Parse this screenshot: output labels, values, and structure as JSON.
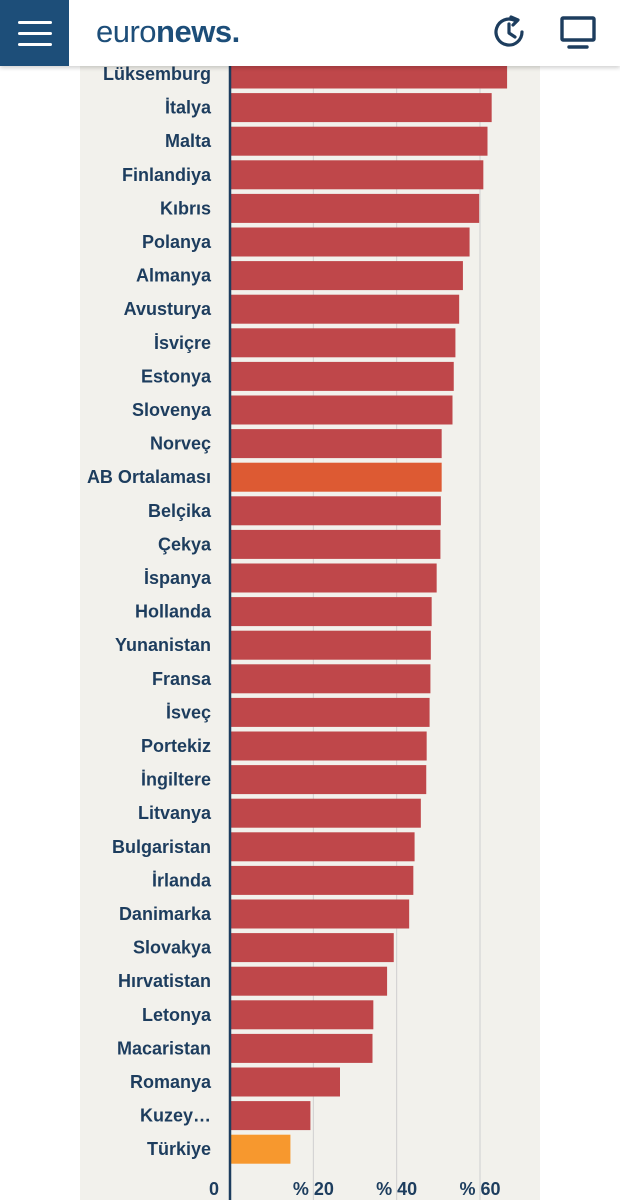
{
  "header": {
    "logo_light": "euro",
    "logo_bold": "news",
    "logo_dot": ".",
    "brand_color": "#1d4e79"
  },
  "chart_data": {
    "type": "bar",
    "orientation": "horizontal",
    "categories": [
      "Lüksemburg",
      "İtalya",
      "Malta",
      "Finlandiya",
      "Kıbrıs",
      "Polanya",
      "Almanya",
      "Avusturya",
      "İsviçre",
      "Estonya",
      "Slovenya",
      "Norveç",
      "AB Ortalaması",
      "Belçika",
      "Çekya",
      "İspanya",
      "Hollanda",
      "Yunanistan",
      "Fransa",
      "İsveç",
      "Portekiz",
      "İngiltere",
      "Litvanya",
      "Bulgaristan",
      "İrlanda",
      "Danimarka",
      "Slovakya",
      "Hırvatistan",
      "Letonya",
      "Macaristan",
      "Romanya",
      "Kuzey…",
      "Türkiye"
    ],
    "values": [
      66.5,
      62.8,
      61.8,
      60.8,
      59.8,
      57.5,
      55.9,
      55.0,
      54.1,
      53.7,
      53.4,
      50.8,
      50.8,
      50.6,
      50.5,
      49.6,
      48.4,
      48.2,
      48.1,
      47.9,
      47.2,
      47.1,
      45.8,
      44.3,
      44.0,
      43.0,
      39.3,
      37.7,
      34.4,
      34.2,
      26.4,
      19.3,
      14.5
    ],
    "highlight": {
      "AB Ortalaması": "#dd5a33",
      "Türkiye": "#f7982e"
    },
    "bar_color": "#bf474a",
    "xticks": [
      0,
      20,
      40,
      60
    ],
    "xtick_labels": [
      "0",
      "% 20",
      "% 40",
      "% 60"
    ],
    "xlim": [
      0,
      75
    ]
  }
}
